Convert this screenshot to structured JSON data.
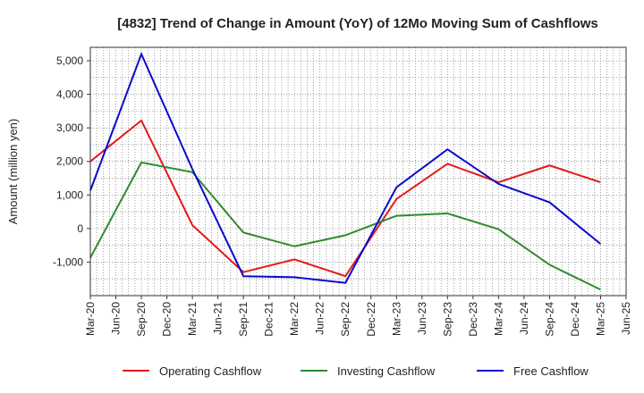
{
  "chart_data": {
    "type": "line",
    "title": "[4832]  Trend of Change in Amount (YoY) of 12Mo Moving Sum of Cashflows",
    "xlabel": "",
    "ylabel": "Amount (million yen)",
    "categories": [
      "Mar-20",
      "Jun-20",
      "Sep-20",
      "Dec-20",
      "Mar-21",
      "Jun-21",
      "Sep-21",
      "Dec-21",
      "Mar-22",
      "Jun-22",
      "Sep-22",
      "Dec-22",
      "Mar-23",
      "Jun-23",
      "Sep-23",
      "Dec-23",
      "Mar-24",
      "Jun-24",
      "Sep-24",
      "Dec-24",
      "Mar-25",
      "Jun-25"
    ],
    "ylim": [
      -2000,
      5400
    ],
    "yticks": [
      -1000,
      0,
      1000,
      2000,
      3000,
      4000,
      5000
    ],
    "ytick_labels": [
      "-1,000",
      "0",
      "1,000",
      "2,000",
      "3,000",
      "4,000",
      "5,000"
    ],
    "grid": true,
    "legend_position": "bottom",
    "series": [
      {
        "name": "Operating Cashflow",
        "color": "#e31a1c",
        "points": [
          {
            "x": "Mar-20",
            "y": 2000
          },
          {
            "x": "Sep-20",
            "y": 3220
          },
          {
            "x": "Mar-21",
            "y": 100
          },
          {
            "x": "Sep-21",
            "y": -1300
          },
          {
            "x": "Mar-22",
            "y": -920
          },
          {
            "x": "Sep-22",
            "y": -1420
          },
          {
            "x": "Mar-23",
            "y": 880
          },
          {
            "x": "Sep-23",
            "y": 1930
          },
          {
            "x": "Mar-24",
            "y": 1380
          },
          {
            "x": "Sep-24",
            "y": 1880
          },
          {
            "x": "Mar-25",
            "y": 1380
          }
        ]
      },
      {
        "name": "Investing Cashflow",
        "color": "#2e8b2e",
        "points": [
          {
            "x": "Mar-20",
            "y": -870
          },
          {
            "x": "Sep-20",
            "y": 1970
          },
          {
            "x": "Mar-21",
            "y": 1680
          },
          {
            "x": "Sep-21",
            "y": -120
          },
          {
            "x": "Mar-22",
            "y": -530
          },
          {
            "x": "Sep-22",
            "y": -200
          },
          {
            "x": "Mar-23",
            "y": 380
          },
          {
            "x": "Sep-23",
            "y": 450
          },
          {
            "x": "Mar-24",
            "y": -20
          },
          {
            "x": "Sep-24",
            "y": -1080
          },
          {
            "x": "Mar-25",
            "y": -1820
          }
        ]
      },
      {
        "name": "Free Cashflow",
        "color": "#0a0acd",
        "points": [
          {
            "x": "Mar-20",
            "y": 1130
          },
          {
            "x": "Sep-20",
            "y": 5200
          },
          {
            "x": "Mar-21",
            "y": 1770
          },
          {
            "x": "Sep-21",
            "y": -1420
          },
          {
            "x": "Mar-22",
            "y": -1450
          },
          {
            "x": "Sep-22",
            "y": -1620
          },
          {
            "x": "Mar-23",
            "y": 1230
          },
          {
            "x": "Sep-23",
            "y": 2360
          },
          {
            "x": "Mar-24",
            "y": 1330
          },
          {
            "x": "Sep-24",
            "y": 780
          },
          {
            "x": "Mar-25",
            "y": -460
          }
        ]
      }
    ]
  }
}
